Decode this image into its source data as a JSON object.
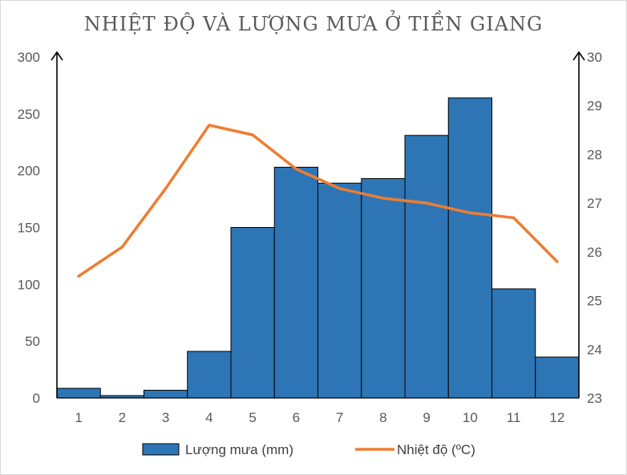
{
  "chart_data": {
    "title": "NHIỆT ĐỘ VÀ LƯỢNG MƯA Ở TIỀN GIANG",
    "type": "bar+line",
    "categories": [
      "1",
      "2",
      "3",
      "4",
      "5",
      "6",
      "7",
      "8",
      "9",
      "10",
      "11",
      "12"
    ],
    "series": [
      {
        "name": "Lượng mưa (mm)",
        "type": "bar",
        "axis": "left",
        "color": "#2e75b6",
        "values": [
          8.5,
          2.1,
          6.8,
          41,
          150,
          203,
          189,
          193,
          231,
          264,
          96,
          36
        ]
      },
      {
        "name": "Nhiệt độ (ºC)",
        "type": "line",
        "axis": "right",
        "color": "#ed7d31",
        "values": [
          25.5,
          26.1,
          27.3,
          28.6,
          28.4,
          27.7,
          27.3,
          27.1,
          27.0,
          26.8,
          26.7,
          25.8
        ]
      }
    ],
    "y_left": {
      "min": 0,
      "max": 300,
      "ticks": [
        "0",
        "50",
        "100",
        "150",
        "200",
        "250",
        "300"
      ]
    },
    "y_right": {
      "min": 23,
      "max": 30,
      "ticks": [
        "23",
        "24",
        "25",
        "26",
        "27",
        "28",
        "29",
        "30"
      ]
    },
    "legend_position": "bottom"
  }
}
